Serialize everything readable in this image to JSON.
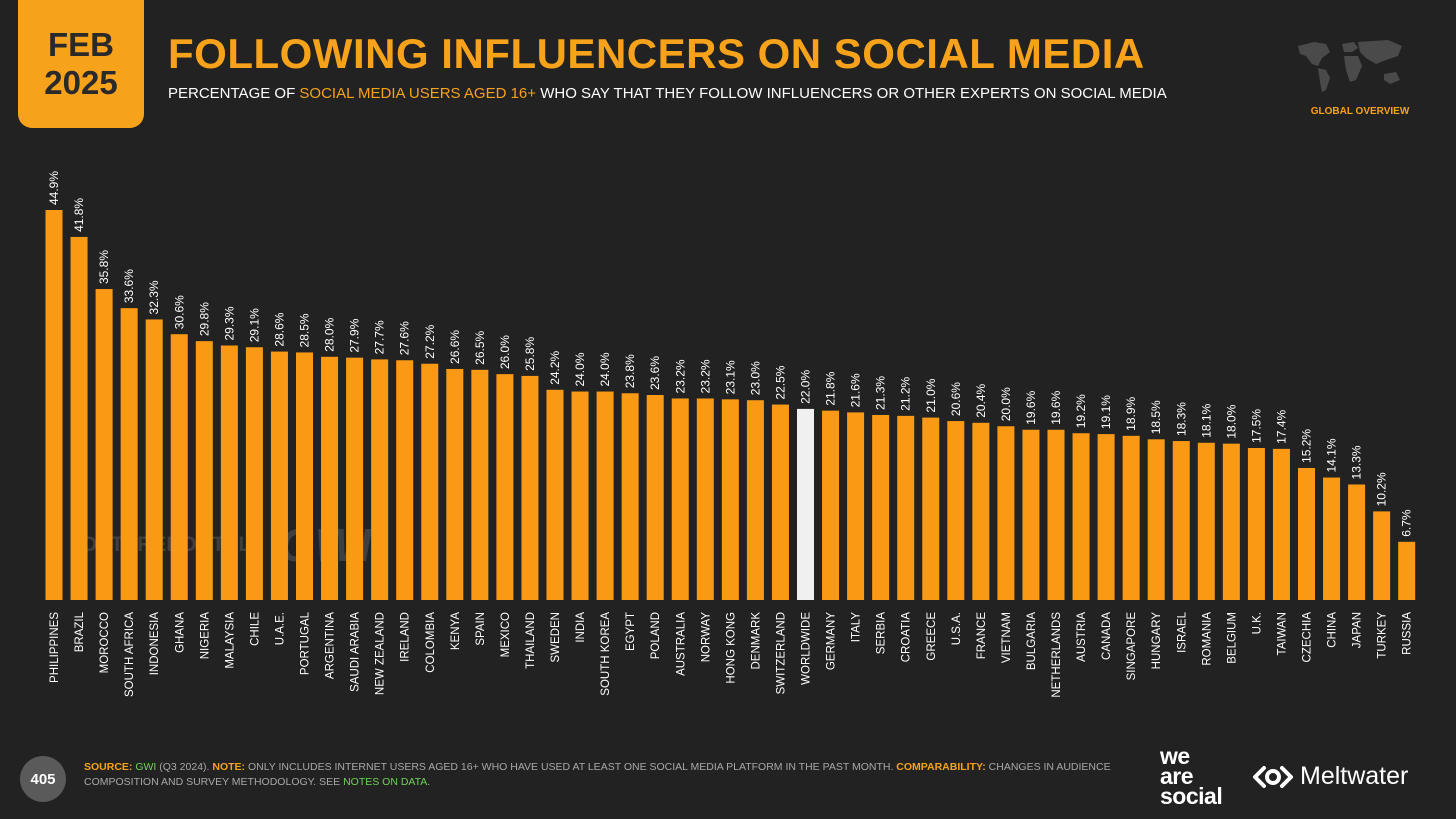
{
  "header": {
    "date_month": "FEB",
    "date_year": "2025",
    "title": "FOLLOWING INFLUENCERS ON SOCIAL MEDIA",
    "subtitle_pre": "PERCENTAGE OF ",
    "subtitle_highlight": "SOCIAL MEDIA USERS AGED 16+",
    "subtitle_post": " WHO SAY THAT THEY FOLLOW INFLUENCERS OR OTHER EXPERTS ON SOCIAL MEDIA",
    "global_overview": "GLOBAL OVERVIEW"
  },
  "watermark": {
    "datareportal": "DATAREPORTAL",
    "gwi": "GWI."
  },
  "colors": {
    "accent": "#f7a21b",
    "bar": "#fa9a14",
    "highlight_bar": "#f0f0f0",
    "background": "#222222"
  },
  "chart_data": {
    "type": "bar",
    "categories": [
      "PHILIPPINES",
      "BRAZIL",
      "MOROCCO",
      "SOUTH AFRICA",
      "INDONESIA",
      "GHANA",
      "NIGERIA",
      "MALAYSIA",
      "CHILE",
      "U.A.E.",
      "PORTUGAL",
      "ARGENTINA",
      "SAUDI ARABIA",
      "NEW ZEALAND",
      "IRELAND",
      "COLOMBIA",
      "KENYA",
      "SPAIN",
      "MEXICO",
      "THAILAND",
      "SWEDEN",
      "INDIA",
      "SOUTH KOREA",
      "EGYPT",
      "POLAND",
      "AUSTRALIA",
      "NORWAY",
      "HONG KONG",
      "DENMARK",
      "SWITZERLAND",
      "WORLDWIDE",
      "GERMANY",
      "ITALY",
      "SERBIA",
      "CROATIA",
      "GREECE",
      "U.S.A.",
      "FRANCE",
      "VIETNAM",
      "BULGARIA",
      "NETHERLANDS",
      "AUSTRIA",
      "CANADA",
      "SINGAPORE",
      "HUNGARY",
      "ISRAEL",
      "ROMANIA",
      "BELGIUM",
      "U.K.",
      "TAIWAN",
      "CZECHIA",
      "CHINA",
      "JAPAN",
      "TURKEY",
      "RUSSIA"
    ],
    "values": [
      44.9,
      41.8,
      35.8,
      33.6,
      32.3,
      30.6,
      29.8,
      29.3,
      29.1,
      28.6,
      28.5,
      28.0,
      27.9,
      27.7,
      27.6,
      27.2,
      26.6,
      26.5,
      26.0,
      25.8,
      24.2,
      24.0,
      24.0,
      23.8,
      23.6,
      23.2,
      23.2,
      23.1,
      23.0,
      22.5,
      22.0,
      21.8,
      21.6,
      21.3,
      21.2,
      21.0,
      20.6,
      20.4,
      20.0,
      19.6,
      19.6,
      19.2,
      19.1,
      18.9,
      18.5,
      18.3,
      18.1,
      18.0,
      17.5,
      17.4,
      15.2,
      14.1,
      13.3,
      10.2,
      6.7
    ],
    "value_labels": [
      "44.9%",
      "41.8%",
      "35.8%",
      "33.6%",
      "32.3%",
      "30.6%",
      "29.8%",
      "29.3%",
      "29.1%",
      "28.6%",
      "28.5%",
      "28.0%",
      "27.9%",
      "27.7%",
      "27.6%",
      "27.2%",
      "26.6%",
      "26.5%",
      "26.0%",
      "25.8%",
      "24.2%",
      "24.0%",
      "24.0%",
      "23.8%",
      "23.6%",
      "23.2%",
      "23.2%",
      "23.1%",
      "23.0%",
      "22.5%",
      "22.0%",
      "21.8%",
      "21.6%",
      "21.3%",
      "21.2%",
      "21.0%",
      "20.6%",
      "20.4%",
      "20.0%",
      "19.6%",
      "19.6%",
      "19.2%",
      "19.1%",
      "18.9%",
      "18.5%",
      "18.3%",
      "18.1%",
      "18.0%",
      "17.5%",
      "17.4%",
      "15.2%",
      "14.1%",
      "13.3%",
      "10.2%",
      "6.7%"
    ],
    "highlight_category": "WORLDWIDE",
    "ylim": [
      0,
      50
    ],
    "grid": false,
    "legend": "none"
  },
  "footer": {
    "page_number": "405",
    "source_label": "SOURCE:",
    "source_gwi": "GWI",
    "source_text": " (Q3 2024). ",
    "note_label": "NOTE:",
    "note_text": " ONLY INCLUDES INTERNET USERS AGED 16+ WHO HAVE USED AT LEAST ONE SOCIAL MEDIA PLATFORM IN THE PAST MONTH. ",
    "comparability_label": "COMPARABILITY:",
    "comparability_text": " CHANGES IN AUDIENCE COMPOSITION AND SURVEY METHODOLOGY. SEE ",
    "notes_link": "NOTES ON DATA",
    "end": ".",
    "logo_we": "we",
    "logo_are": "are",
    "logo_social": "social",
    "meltwater": "Meltwater"
  }
}
